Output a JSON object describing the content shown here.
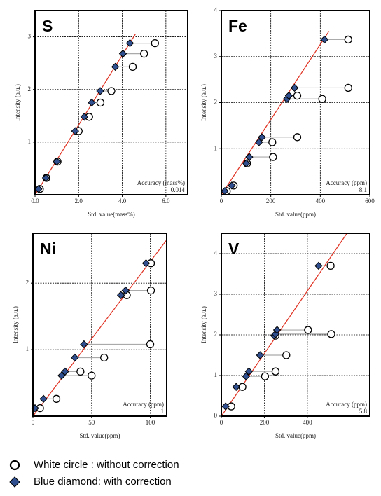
{
  "chart_data": [
    {
      "type": "scatter",
      "title": "S",
      "x_label": "Std. value(mass%)",
      "y_label": "Intensity (a.u.)",
      "annotation": "Accuracy  (mass%)",
      "accuracy": "0.014",
      "xlim": [
        0,
        7
      ],
      "ylim": [
        0,
        3.5
      ],
      "xticks": [
        {
          "value": 0,
          "label": "0.0"
        },
        {
          "value": 2,
          "label": "2.0"
        },
        {
          "value": 4,
          "label": "4.0"
        },
        {
          "value": 6,
          "label": "6.0"
        }
      ],
      "yticks": [
        1,
        2,
        3
      ],
      "grid": true,
      "fit_x": [
        0,
        4.6
      ],
      "fit_y": [
        0,
        3.05
      ],
      "fit_color": "#e03020",
      "series": [
        {
          "name": "White circle : without correction",
          "color": "#ffffff",
          "x": [
            0.22,
            0.52,
            1.03,
            2.0,
            2.48,
            3.0,
            3.5,
            4.48,
            5.0,
            5.5
          ],
          "values": [
            0.11,
            0.32,
            0.63,
            1.21,
            1.48,
            1.75,
            1.97,
            2.43,
            2.68,
            2.88
          ]
        },
        {
          "name": "Blue diamond: with correction",
          "color": "#2f4f8f",
          "x": [
            0.16,
            0.5,
            1.0,
            1.84,
            2.26,
            2.6,
            2.99,
            3.68,
            4.03,
            4.35
          ],
          "values": [
            0.11,
            0.32,
            0.63,
            1.21,
            1.48,
            1.75,
            1.97,
            2.43,
            2.68,
            2.88
          ]
        }
      ]
    },
    {
      "type": "scatter",
      "title": "Fe",
      "x_label": "Std. value(ppm)",
      "y_label": "Intensity (a.u.)",
      "annotation": "Accuracy  (ppm)",
      "accuracy": "8.1",
      "xlim": [
        0,
        600
      ],
      "ylim": [
        0,
        4
      ],
      "xticks": [
        0,
        200,
        400,
        600
      ],
      "yticks": [
        1,
        2,
        3,
        4
      ],
      "grid": true,
      "fit_x": [
        0,
        435
      ],
      "fit_y": [
        0,
        3.55
      ],
      "fit_color": "#e03020",
      "series": [
        {
          "name": "White circle : without correction",
          "color": "#ffffff",
          "x": [
            22,
            50,
            104,
            209,
            206,
            307,
            408,
            307,
            513,
            513
          ],
          "values": [
            0.08,
            0.2,
            0.68,
            0.82,
            1.14,
            1.25,
            2.08,
            2.15,
            2.32,
            3.37
          ]
        },
        {
          "name": "Blue diamond: with correction",
          "color": "#2f4f8f",
          "x": [
            14,
            42,
            101,
            113,
            152,
            164,
            265,
            273,
            296,
            417
          ],
          "values": [
            0.08,
            0.2,
            0.68,
            0.82,
            1.14,
            1.25,
            2.08,
            2.15,
            2.32,
            3.37
          ]
        }
      ]
    },
    {
      "type": "scatter",
      "title": "Ni",
      "x_label": "Std. value(ppm)",
      "y_label": "Intensity (a.u.)",
      "annotation": "Accuracy  (ppm)",
      "accuracy": "1",
      "xlim": [
        0,
        114
      ],
      "ylim": [
        0,
        2.75
      ],
      "xticks": [
        0,
        50,
        100
      ],
      "yticks": [
        1,
        2
      ],
      "grid": true,
      "fit_x": [
        0,
        114
      ],
      "fit_y": [
        0,
        2.65
      ],
      "fit_color": "#e03020",
      "series": [
        {
          "name": "White circle : without correction",
          "color": "#ffffff",
          "x": [
            6,
            20,
            50,
            40.5,
            60.7,
            100,
            80,
            100.6,
            100.6
          ],
          "values": [
            0.12,
            0.26,
            0.61,
            0.67,
            0.88,
            1.08,
            1.82,
            1.89,
            2.3
          ]
        },
        {
          "name": "Blue diamond: with correction",
          "color": "#2f4f8f",
          "x": [
            1.8,
            9,
            24.4,
            27.4,
            35.7,
            43.5,
            75,
            79,
            96.4
          ],
          "values": [
            0.12,
            0.26,
            0.61,
            0.67,
            0.88,
            1.08,
            1.82,
            1.89,
            2.3
          ]
        }
      ]
    },
    {
      "type": "scatter",
      "title": "V",
      "x_label": "Std. value(ppm)",
      "y_label": "Intensity (a.u.)",
      "annotation": "Accuracy  (ppm)",
      "accuracy": "5.8",
      "xlim": [
        0,
        690
      ],
      "ylim": [
        0,
        4.5
      ],
      "xticks": [
        0,
        200,
        400
      ],
      "yticks": [
        0,
        1,
        2,
        3,
        4
      ],
      "grid": true,
      "fit_x": [
        0,
        584
      ],
      "fit_y": [
        0,
        4.5
      ],
      "fit_color": "#e03020",
      "series": [
        {
          "name": "White circle : without correction",
          "color": "#ffffff",
          "x": [
            46,
            98,
            203,
            252,
            302,
            252,
            511,
            403,
            508
          ],
          "values": [
            0.24,
            0.72,
            0.98,
            1.1,
            1.5,
            1.98,
            2.02,
            2.12,
            3.7
          ]
        },
        {
          "name": "Blue diamond: with correction",
          "color": "#2f4f8f",
          "x": [
            20,
            69,
            115,
            128,
            180,
            246,
            252,
            259,
            452
          ],
          "values": [
            0.24,
            0.72,
            0.98,
            1.1,
            1.5,
            1.98,
            2.02,
            2.12,
            3.7
          ]
        }
      ]
    }
  ]
}
